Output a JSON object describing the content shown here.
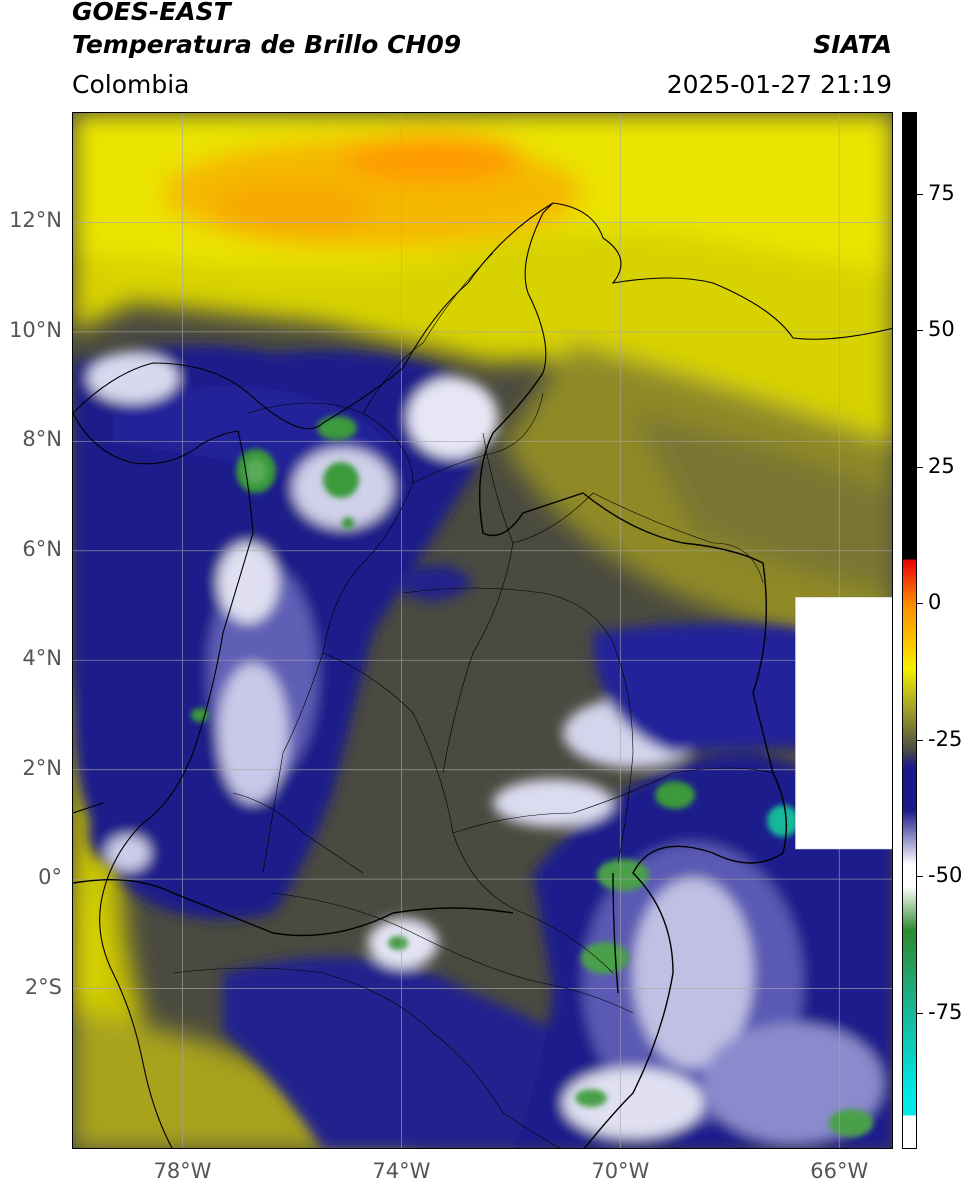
{
  "header": {
    "satellite": "GOES-EAST",
    "product": "Temperatura de Brillo CH09",
    "region": "Colombia",
    "agency": "SIATA",
    "datetime": "2025-01-27 21:19"
  },
  "map": {
    "lon_range": [
      -80.0,
      -65.0
    ],
    "lat_range": [
      -4.95,
      14.0
    ],
    "gridlines": true,
    "lat_ticks": [
      {
        "value": 12,
        "label": "12°N"
      },
      {
        "value": 10,
        "label": "10°N"
      },
      {
        "value": 8,
        "label": "8°N"
      },
      {
        "value": 6,
        "label": "6°N"
      },
      {
        "value": 4,
        "label": "4°N"
      },
      {
        "value": 2,
        "label": "2°N"
      },
      {
        "value": 0,
        "label": "0°"
      },
      {
        "value": -2,
        "label": "2°S"
      }
    ],
    "lon_ticks": [
      {
        "value": -78,
        "label": "78°W"
      },
      {
        "value": -74,
        "label": "74°W"
      },
      {
        "value": -70,
        "label": "70°W"
      },
      {
        "value": -66,
        "label": "66°W"
      }
    ],
    "no_data_box": {
      "lon": [
        -66.8,
        -65.0
      ],
      "lat": [
        0.55,
        5.15
      ]
    }
  },
  "colorbar": {
    "range": [
      -100,
      90
    ],
    "ticks": [
      {
        "value": 75,
        "label": "75"
      },
      {
        "value": 50,
        "label": "50"
      },
      {
        "value": 25,
        "label": "25"
      },
      {
        "value": 0,
        "label": "0"
      },
      {
        "value": -25,
        "label": "-25"
      },
      {
        "value": -50,
        "label": "-50"
      },
      {
        "value": -75,
        "label": "-75"
      }
    ],
    "colors": {
      "black": "#000000",
      "red": "#e8000a",
      "orange": "#ff8a00",
      "yellow": "#f5ef00",
      "olive": "#9a9a2a",
      "gray": "#4a4a44",
      "navy": "#1a1a8c",
      "white": "#ffffff",
      "green": "#2e8b2e",
      "teal": "#18b89a",
      "cyan": "#00e8e8"
    }
  }
}
